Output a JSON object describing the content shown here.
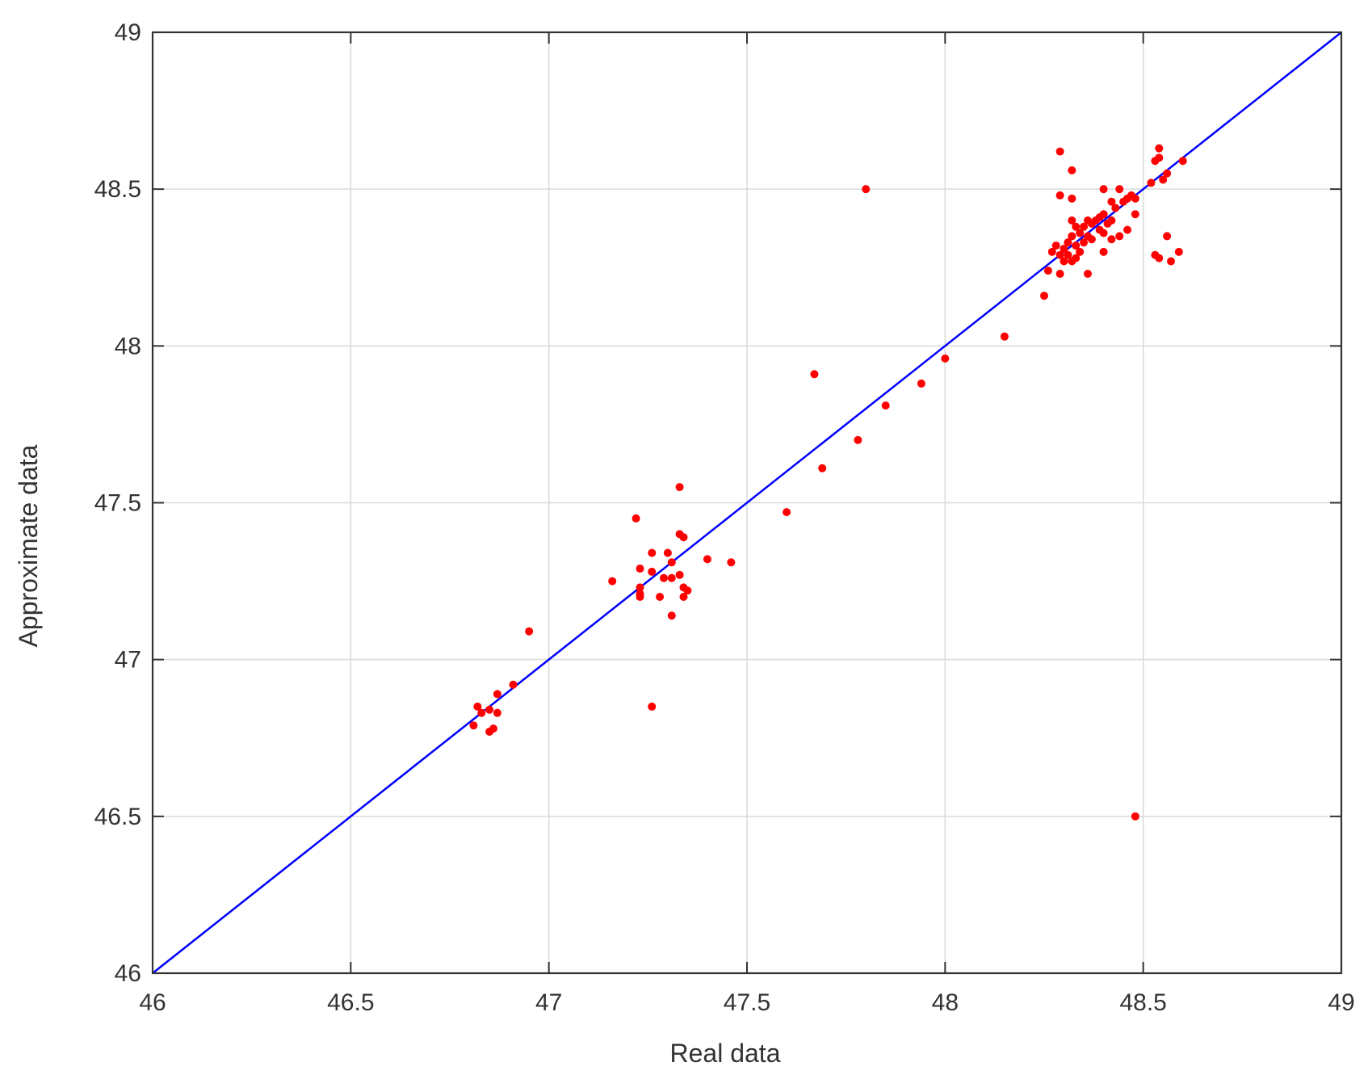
{
  "chart_data": {
    "type": "scatter",
    "xlabel": "Real data",
    "ylabel": "Approximate data",
    "xlim": [
      46,
      49
    ],
    "ylim": [
      46,
      49
    ],
    "x_ticks": [
      "46",
      "46.5",
      "47",
      "47.5",
      "48",
      "48.5",
      "49"
    ],
    "y_ticks": [
      "46",
      "46.5",
      "47",
      "47.5",
      "48",
      "48.5",
      "49"
    ],
    "grid": true,
    "colors": {
      "points": "#ff0000",
      "line": "#0000ff",
      "grid": "#d9d9d9",
      "axes": "#333333"
    },
    "reference_line": {
      "x": [
        46,
        49
      ],
      "y": [
        46,
        49
      ]
    },
    "points": [
      [
        46.81,
        46.79
      ],
      [
        46.82,
        46.85
      ],
      [
        46.83,
        46.83
      ],
      [
        46.85,
        46.84
      ],
      [
        46.85,
        46.77
      ],
      [
        46.86,
        46.78
      ],
      [
        46.87,
        46.89
      ],
      [
        46.87,
        46.83
      ],
      [
        46.91,
        46.92
      ],
      [
        46.95,
        47.09
      ],
      [
        47.16,
        47.25
      ],
      [
        47.22,
        47.45
      ],
      [
        47.23,
        47.29
      ],
      [
        47.23,
        47.23
      ],
      [
        47.23,
        47.21
      ],
      [
        47.23,
        47.2
      ],
      [
        47.26,
        47.34
      ],
      [
        47.26,
        47.28
      ],
      [
        47.26,
        46.85
      ],
      [
        47.28,
        47.2
      ],
      [
        47.29,
        47.26
      ],
      [
        47.3,
        47.34
      ],
      [
        47.31,
        47.31
      ],
      [
        47.31,
        47.26
      ],
      [
        47.31,
        47.14
      ],
      [
        47.33,
        47.55
      ],
      [
        47.33,
        47.4
      ],
      [
        47.33,
        47.27
      ],
      [
        47.34,
        47.39
      ],
      [
        47.34,
        47.23
      ],
      [
        47.34,
        47.2
      ],
      [
        47.35,
        47.22
      ],
      [
        47.4,
        47.32
      ],
      [
        47.46,
        47.31
      ],
      [
        47.6,
        47.47
      ],
      [
        47.67,
        47.91
      ],
      [
        47.69,
        47.61
      ],
      [
        47.78,
        47.7
      ],
      [
        47.8,
        48.5
      ],
      [
        47.85,
        47.81
      ],
      [
        47.94,
        47.88
      ],
      [
        48.0,
        47.96
      ],
      [
        48.15,
        48.03
      ],
      [
        48.25,
        48.16
      ],
      [
        48.26,
        48.24
      ],
      [
        48.27,
        48.3
      ],
      [
        48.28,
        48.32
      ],
      [
        48.29,
        48.62
      ],
      [
        48.29,
        48.48
      ],
      [
        48.29,
        48.29
      ],
      [
        48.29,
        48.23
      ],
      [
        48.3,
        48.31
      ],
      [
        48.3,
        48.27
      ],
      [
        48.31,
        48.33
      ],
      [
        48.31,
        48.29
      ],
      [
        48.32,
        48.56
      ],
      [
        48.32,
        48.47
      ],
      [
        48.32,
        48.4
      ],
      [
        48.32,
        48.35
      ],
      [
        48.32,
        48.27
      ],
      [
        48.33,
        48.38
      ],
      [
        48.33,
        48.32
      ],
      [
        48.33,
        48.28
      ],
      [
        48.34,
        48.36
      ],
      [
        48.34,
        48.3
      ],
      [
        48.35,
        48.38
      ],
      [
        48.35,
        48.33
      ],
      [
        48.36,
        48.4
      ],
      [
        48.36,
        48.35
      ],
      [
        48.36,
        48.23
      ],
      [
        48.37,
        48.39
      ],
      [
        48.37,
        48.34
      ],
      [
        48.38,
        48.4
      ],
      [
        48.39,
        48.37
      ],
      [
        48.39,
        48.41
      ],
      [
        48.4,
        48.5
      ],
      [
        48.4,
        48.42
      ],
      [
        48.4,
        48.36
      ],
      [
        48.4,
        48.3
      ],
      [
        48.41,
        48.39
      ],
      [
        48.42,
        48.46
      ],
      [
        48.42,
        48.34
      ],
      [
        48.42,
        48.4
      ],
      [
        48.43,
        48.44
      ],
      [
        48.44,
        48.5
      ],
      [
        48.44,
        48.35
      ],
      [
        48.45,
        48.46
      ],
      [
        48.46,
        48.47
      ],
      [
        48.46,
        48.37
      ],
      [
        48.47,
        48.48
      ],
      [
        48.48,
        48.47
      ],
      [
        48.48,
        48.42
      ],
      [
        48.48,
        46.5
      ],
      [
        48.52,
        48.52
      ],
      [
        48.53,
        48.59
      ],
      [
        48.53,
        48.29
      ],
      [
        48.54,
        48.63
      ],
      [
        48.54,
        48.6
      ],
      [
        48.54,
        48.28
      ],
      [
        48.55,
        48.53
      ],
      [
        48.56,
        48.55
      ],
      [
        48.56,
        48.35
      ],
      [
        48.57,
        48.27
      ],
      [
        48.59,
        48.3
      ],
      [
        48.6,
        48.59
      ]
    ]
  }
}
